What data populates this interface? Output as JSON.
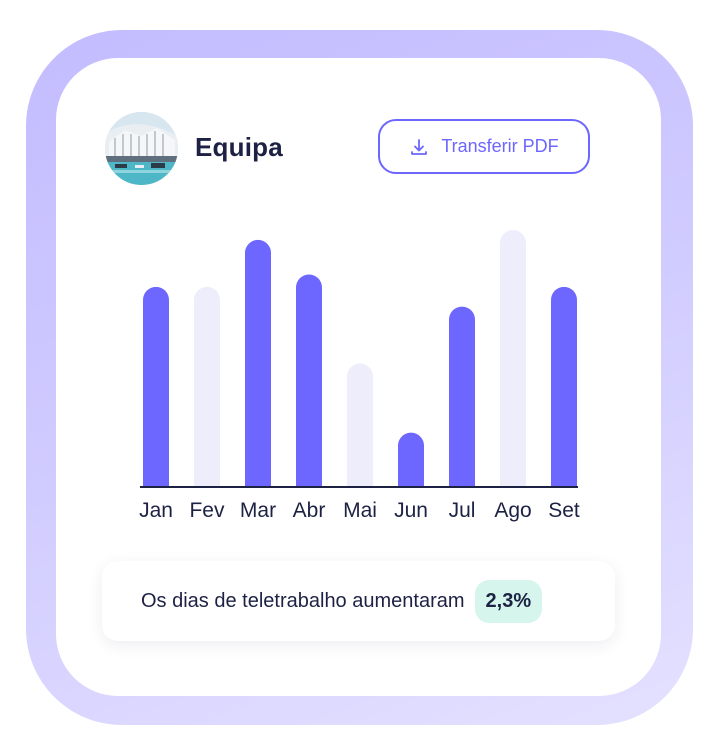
{
  "header": {
    "team_name": "Equipa",
    "avatar_icon": "team-photo-avatar",
    "download_icon": "download-icon",
    "download_label": "Transferir PDF"
  },
  "colors": {
    "accent": "#6d66ff",
    "muted_bar": "#eeedfc",
    "text": "#1d2245",
    "badge_bg": "#d6f5ec"
  },
  "chart_data": {
    "type": "bar",
    "categories": [
      "Jan",
      "Fev",
      "Mar",
      "Abr",
      "Mai",
      "Jun",
      "Jul",
      "Ago",
      "Set"
    ],
    "values": [
      81,
      81,
      100,
      86,
      50,
      22,
      73,
      104,
      81
    ],
    "highlighted": [
      true,
      false,
      true,
      true,
      false,
      true,
      true,
      false,
      true
    ],
    "title": "",
    "xlabel": "",
    "ylabel": "",
    "ylim": [
      0,
      104
    ],
    "grid": false,
    "legend": "none"
  },
  "summary": {
    "text": "Os dias de teletrabalho aumentaram",
    "badge": "2,3%"
  }
}
